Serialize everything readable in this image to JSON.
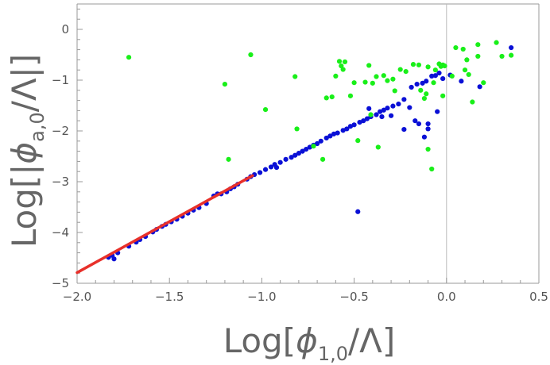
{
  "chart_data": {
    "type": "scatter",
    "title": "",
    "xlabel_main": "Log[",
    "xlabel_phi": "ϕ",
    "xlabel_sub": "1,0",
    "xlabel_tail": "/Λ]",
    "ylabel_main": "Log[|",
    "ylabel_phi": "ϕ",
    "ylabel_sub": "a,0",
    "ylabel_tail": "/Λ|]",
    "xlim": [
      -2.0,
      0.5
    ],
    "ylim": [
      -5,
      0.5
    ],
    "xticks": [
      -2.0,
      -1.5,
      -1.0,
      -0.5,
      0.0,
      0.5
    ],
    "xtick_labels": [
      "−2.0",
      "−1.5",
      "−1.0",
      "−0.5",
      "0.0",
      "0.5"
    ],
    "yticks": [
      -5,
      -4,
      -3,
      -2,
      -1,
      0
    ],
    "ytick_labels": [
      "−5",
      "−4",
      "−3",
      "−2",
      "−1",
      "0"
    ],
    "grid": false,
    "reference_line_x": 0.0,
    "colors": {
      "blue": "#0a10d6",
      "green": "#19ef19",
      "fit": "#e8302a",
      "axis": "#999999",
      "refline": "#bbbbbb"
    },
    "series": [
      {
        "color": "blue",
        "points": [
          [
            -1.83,
            -4.49
          ],
          [
            -1.81,
            -4.45
          ],
          [
            -1.8,
            -4.52
          ],
          [
            -1.78,
            -4.4
          ],
          [
            -1.72,
            -4.27
          ],
          [
            -1.68,
            -4.19
          ],
          [
            -1.66,
            -4.14
          ],
          [
            -1.63,
            -4.08
          ],
          [
            -1.59,
            -3.99
          ],
          [
            -1.57,
            -3.94
          ],
          [
            -1.54,
            -3.88
          ],
          [
            -1.52,
            -3.84
          ],
          [
            -1.49,
            -3.79
          ],
          [
            -1.46,
            -3.74
          ],
          [
            -1.43,
            -3.68
          ],
          [
            -1.4,
            -3.62
          ],
          [
            -1.37,
            -3.56
          ],
          [
            -1.34,
            -3.51
          ],
          [
            -1.3,
            -3.43
          ],
          [
            -1.26,
            -3.28
          ],
          [
            -1.24,
            -3.24
          ],
          [
            -1.22,
            -3.24
          ],
          [
            -1.19,
            -3.2
          ],
          [
            -1.17,
            -3.14
          ],
          [
            -1.15,
            -3.1
          ],
          [
            -1.13,
            -3.05
          ],
          [
            -1.08,
            -2.95
          ],
          [
            -1.06,
            -2.9
          ],
          [
            -1.04,
            -2.86
          ],
          [
            -1.01,
            -2.82
          ],
          [
            -0.98,
            -2.76
          ],
          [
            -0.95,
            -2.71
          ],
          [
            -0.93,
            -2.66
          ],
          [
            -0.9,
            -2.62
          ],
          [
            -0.87,
            -2.56
          ],
          [
            -0.84,
            -2.52
          ],
          [
            -0.82,
            -2.48
          ],
          [
            -0.8,
            -2.44
          ],
          [
            -0.78,
            -2.4
          ],
          [
            -0.76,
            -2.36
          ],
          [
            -0.74,
            -2.32
          ],
          [
            -0.72,
            -2.28
          ],
          [
            -0.7,
            -2.25
          ],
          [
            -0.68,
            -2.2
          ],
          [
            -0.65,
            -2.14
          ],
          [
            -0.63,
            -2.1
          ],
          [
            -0.61,
            -2.06
          ],
          [
            -0.59,
            -2.04
          ],
          [
            -0.56,
            -1.99
          ],
          [
            -0.54,
            -1.96
          ],
          [
            -0.52,
            -1.91
          ],
          [
            -0.5,
            -1.88
          ],
          [
            -0.47,
            -1.83
          ],
          [
            -0.45,
            -1.8
          ],
          [
            -0.43,
            -1.76
          ],
          [
            -0.41,
            -1.72
          ],
          [
            -0.38,
            -1.68
          ],
          [
            -0.36,
            -1.62
          ],
          [
            -0.34,
            -1.59
          ],
          [
            -0.32,
            -1.55
          ],
          [
            -0.29,
            -1.51
          ],
          [
            -0.26,
            -1.47
          ],
          [
            -0.23,
            -1.38
          ],
          [
            -0.19,
            -1.14
          ],
          [
            -0.16,
            -1.08
          ],
          [
            -0.13,
            -1.06
          ],
          [
            -0.11,
            -1.02
          ],
          [
            -0.08,
            -0.92
          ],
          [
            -0.06,
            -0.91
          ],
          [
            -0.04,
            -0.86
          ],
          [
            -0.02,
            -0.97
          ],
          [
            0.02,
            -0.9
          ],
          [
            0.08,
            -1.02
          ],
          [
            0.18,
            -1.13
          ],
          [
            0.35,
            -0.36
          ],
          [
            -0.92,
            -2.72
          ],
          [
            -0.2,
            -1.54
          ],
          [
            -0.17,
            -1.8
          ],
          [
            -0.15,
            -1.86
          ],
          [
            -0.1,
            -1.86
          ],
          [
            -0.1,
            -1.96
          ],
          [
            -0.12,
            -2.12
          ],
          [
            -0.23,
            -1.97
          ],
          [
            -0.3,
            -1.7
          ],
          [
            -0.48,
            -3.59
          ],
          [
            -0.42,
            -1.56
          ],
          [
            -0.35,
            -1.72
          ],
          [
            -0.05,
            -1.62
          ]
        ]
      },
      {
        "color": "green",
        "points": [
          [
            -1.72,
            -0.55
          ],
          [
            -1.06,
            -0.5
          ],
          [
            -1.2,
            -1.08
          ],
          [
            -1.18,
            -2.56
          ],
          [
            -0.98,
            -1.58
          ],
          [
            -0.82,
            -0.93
          ],
          [
            -0.81,
            -1.96
          ],
          [
            -0.72,
            -2.3
          ],
          [
            -0.67,
            -2.56
          ],
          [
            -0.65,
            -1.35
          ],
          [
            -0.62,
            -1.33
          ],
          [
            -0.6,
            -0.92
          ],
          [
            -0.58,
            -0.63
          ],
          [
            -0.57,
            -0.72
          ],
          [
            -0.56,
            -0.79
          ],
          [
            -0.55,
            -0.64
          ],
          [
            -0.52,
            -1.31
          ],
          [
            -0.5,
            -1.05
          ],
          [
            -0.48,
            -2.19
          ],
          [
            -0.44,
            -1.04
          ],
          [
            -0.42,
            -0.71
          ],
          [
            -0.41,
            -1.68
          ],
          [
            -0.4,
            -1.06
          ],
          [
            -0.38,
            -0.93
          ],
          [
            -0.37,
            -2.32
          ],
          [
            -0.34,
            -0.91
          ],
          [
            -0.32,
            -1.01
          ],
          [
            -0.29,
            -0.98
          ],
          [
            -0.28,
            -1.21
          ],
          [
            -0.25,
            -0.79
          ],
          [
            -0.22,
            -0.83
          ],
          [
            -0.18,
            -0.69
          ],
          [
            -0.15,
            -0.7
          ],
          [
            -0.14,
            -1.2
          ],
          [
            -0.12,
            -1.36
          ],
          [
            -0.11,
            -1.27
          ],
          [
            -0.1,
            -0.74
          ],
          [
            -0.08,
            -2.75
          ],
          [
            -0.07,
            -1.05
          ],
          [
            -0.06,
            -0.8
          ],
          [
            -0.04,
            -0.68
          ],
          [
            -0.03,
            -0.73
          ],
          [
            -0.02,
            -0.7
          ],
          [
            -0.01,
            -0.72
          ],
          [
            -0.02,
            -1.31
          ],
          [
            -0.1,
            -2.36
          ],
          [
            0.03,
            -0.92
          ],
          [
            0.05,
            -0.36
          ],
          [
            0.09,
            -0.39
          ],
          [
            0.1,
            -0.8
          ],
          [
            0.11,
            -0.6
          ],
          [
            0.12,
            -0.89
          ],
          [
            0.14,
            -1.43
          ],
          [
            0.17,
            -0.3
          ],
          [
            0.17,
            -0.53
          ],
          [
            0.2,
            -1.05
          ],
          [
            0.27,
            -0.26
          ],
          [
            0.3,
            -0.53
          ],
          [
            0.35,
            -0.51
          ]
        ]
      }
    ],
    "fit_line": {
      "x": [
        -2.0,
        -1.05
      ],
      "y": [
        -4.79,
        -2.88
      ]
    }
  }
}
